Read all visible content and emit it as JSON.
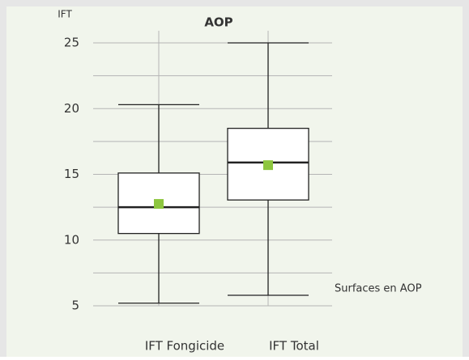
{
  "chart_data": {
    "type": "box",
    "title": "AOP",
    "y_label": "IFT",
    "annotation": "Surfaces en AOP",
    "categories": [
      "IFT Fongicide",
      "IFT Total"
    ],
    "whisker_low": [
      5.2,
      5.8
    ],
    "q1": [
      10.5,
      13.05
    ],
    "median": [
      12.5,
      15.9
    ],
    "q3": [
      15.1,
      18.5
    ],
    "whisker_high": [
      20.3,
      25
    ],
    "mean": [
      12.75,
      15.7
    ],
    "box_color": "#ffffff",
    "mean_color": "#8dc63f",
    "title_color": "#8dc63f",
    "ylim": [
      5,
      25
    ],
    "yticks": [
      5,
      10,
      15,
      20,
      25
    ],
    "minor_yticks": [
      7.5,
      12.5,
      17.5,
      22.5
    ],
    "grid": true
  }
}
